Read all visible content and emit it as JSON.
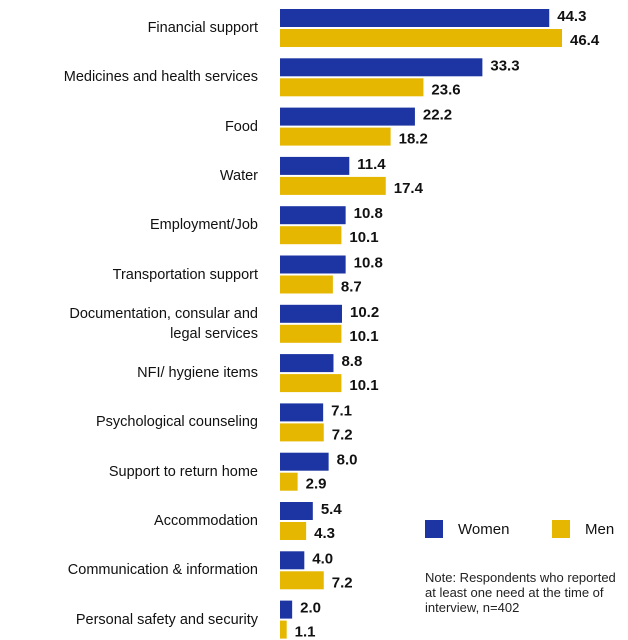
{
  "chart_data": {
    "type": "bar",
    "categories": [
      "Financial support",
      "Medicines and health services",
      "Food",
      "Water",
      "Employment/Job",
      "Transportation support",
      "Documentation, consular and\nlegal services",
      "NFI/ hygiene items",
      "Psychological counseling",
      "Support to return home",
      "Accommodation",
      "Communication & information",
      "Personal safety and security"
    ],
    "series": [
      {
        "name": "Women",
        "color": "#1d35a3",
        "values": [
          44.3,
          33.3,
          22.2,
          11.4,
          10.8,
          10.8,
          10.2,
          8.8,
          7.1,
          8.0,
          5.4,
          4.0,
          2.0
        ],
        "value_labels": [
          "44.3",
          "33.3",
          "22.2",
          "11.4",
          "10.8",
          "10.8",
          "10.2",
          "8.8",
          "7.1",
          "8.0",
          "5.4",
          "4.0",
          "2.0"
        ]
      },
      {
        "name": "Men",
        "color": "#e5b700",
        "values": [
          46.4,
          23.6,
          18.2,
          17.4,
          10.1,
          8.7,
          10.1,
          10.1,
          7.2,
          2.9,
          4.3,
          7.2,
          1.1
        ],
        "value_labels": [
          "46.4",
          "23.6",
          "18.2",
          "17.4",
          "10.1",
          "8.7",
          "10.1",
          "10.1",
          "7.2",
          "2.9",
          "4.3",
          "7.2",
          "1.1"
        ]
      }
    ],
    "note": "Note: Respondents who reported at least one need at the time of interview, n=402"
  }
}
